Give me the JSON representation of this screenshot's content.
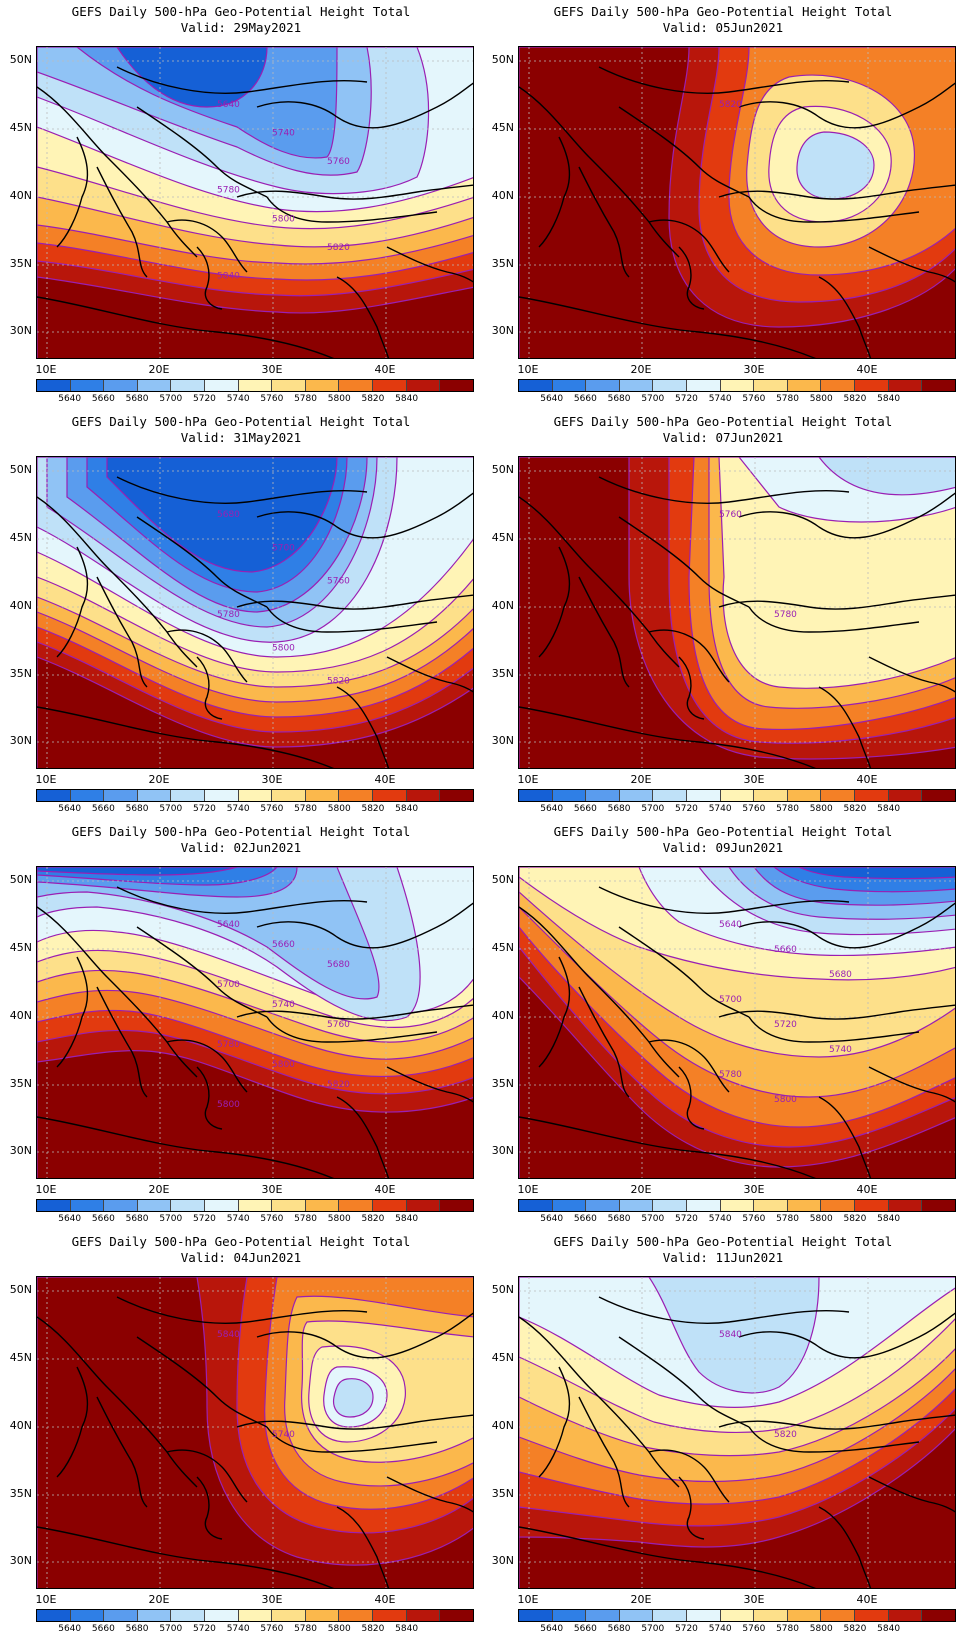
{
  "title_line1": "GEFS Daily 500-hPa Geo-Potential Height Total",
  "lat_labels": [
    "50N",
    "45N",
    "40N",
    "35N",
    "30N"
  ],
  "lon_labels": [
    "10E",
    "20E",
    "30E",
    "40E"
  ],
  "colorbar": {
    "levels": [
      "5640",
      "5660",
      "5680",
      "5700",
      "5720",
      "5740",
      "5760",
      "5780",
      "5800",
      "5820",
      "5840"
    ],
    "colors": [
      "#1560d6",
      "#2f7fe6",
      "#5a9cee",
      "#90c3f5",
      "#bfe1f8",
      "#e4f6fc",
      "#fff4b6",
      "#fde08a",
      "#fbb84c",
      "#f48026",
      "#e23a0f",
      "#b8160b",
      "#8b0000"
    ]
  },
  "panels": [
    {
      "valid": "Valid: 29May2021",
      "fill": "cool_north",
      "contour_labels": [
        "5640",
        "5740",
        "5760",
        "5780",
        "5800",
        "5820",
        "5840"
      ]
    },
    {
      "valid": "Valid: 05Jun2021",
      "fill": "warm_ring",
      "contour_labels": [
        "5820"
      ]
    },
    {
      "valid": "Valid: 31May2021",
      "fill": "cool_big",
      "contour_labels": [
        "5680",
        "5700",
        "5760",
        "5780",
        "5800",
        "5820"
      ]
    },
    {
      "valid": "Valid: 07Jun2021",
      "fill": "warm_mid",
      "contour_labels": [
        "5760",
        "5780"
      ]
    },
    {
      "valid": "Valid: 02Jun2021",
      "fill": "cool_east",
      "contour_labels": [
        "5640",
        "5660",
        "5680",
        "5700",
        "5740",
        "5760",
        "5780",
        "5800",
        "5820",
        "5800"
      ]
    },
    {
      "valid": "Valid: 09Jun2021",
      "fill": "mild",
      "contour_labels": [
        "5640",
        "5660",
        "5680",
        "5700",
        "5720",
        "5740",
        "5780",
        "5800"
      ]
    },
    {
      "valid": "Valid: 04Jun2021",
      "fill": "warm_east_low",
      "contour_labels": [
        "5840",
        "5740"
      ]
    },
    {
      "valid": "Valid: 11Jun2021",
      "fill": "cool_trough",
      "contour_labels": [
        "5840",
        "5820"
      ]
    }
  ]
}
